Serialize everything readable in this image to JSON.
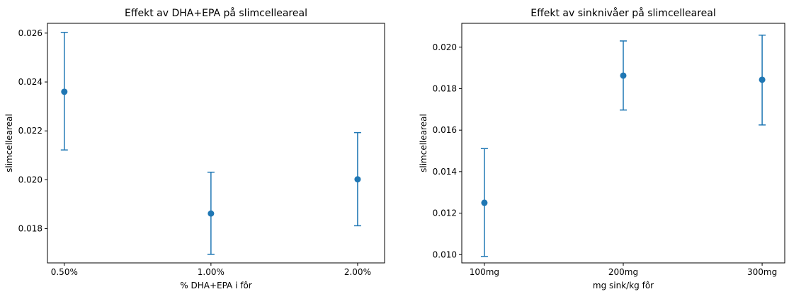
{
  "colors": {
    "series": "#1f77b4",
    "axes": "#000000",
    "background": "#ffffff"
  },
  "chart_data": [
    {
      "type": "scatter",
      "subtype": "errorbar",
      "title": "Effekt av DHA+EPA på slimcelleareal",
      "xlabel": "% DHA+EPA i fôr",
      "ylabel": "slimcelleareal",
      "categories": [
        "0.50%",
        "1.00%",
        "2.00%"
      ],
      "values": [
        0.0236,
        0.01862,
        0.02002
      ],
      "error_low": [
        0.02122,
        0.01695,
        0.01812
      ],
      "error_high": [
        0.02603,
        0.02031,
        0.02193
      ],
      "ylim": [
        0.0166,
        0.0264
      ],
      "yticks": [
        "0.018",
        "0.020",
        "0.022",
        "0.024",
        "0.026"
      ],
      "ytick_values": [
        0.018,
        0.02,
        0.022,
        0.024,
        0.026
      ],
      "grid": false,
      "legend": false
    },
    {
      "type": "scatter",
      "subtype": "errorbar",
      "title": "Effekt av sinknivåer på slimcelleareal",
      "xlabel": "mg sink/kg fôr",
      "ylabel": "slimcelleareal",
      "categories": [
        "100mg",
        "200mg",
        "300mg"
      ],
      "values": [
        0.0125,
        0.01863,
        0.01843
      ],
      "error_low": [
        0.00991,
        0.01697,
        0.01625
      ],
      "error_high": [
        0.01511,
        0.0203,
        0.02058
      ],
      "ylim": [
        0.0096,
        0.02115
      ],
      "yticks": [
        "0.010",
        "0.012",
        "0.014",
        "0.016",
        "0.018",
        "0.020"
      ],
      "ytick_values": [
        0.01,
        0.012,
        0.014,
        0.016,
        0.018,
        0.02
      ],
      "grid": false,
      "legend": false
    }
  ]
}
